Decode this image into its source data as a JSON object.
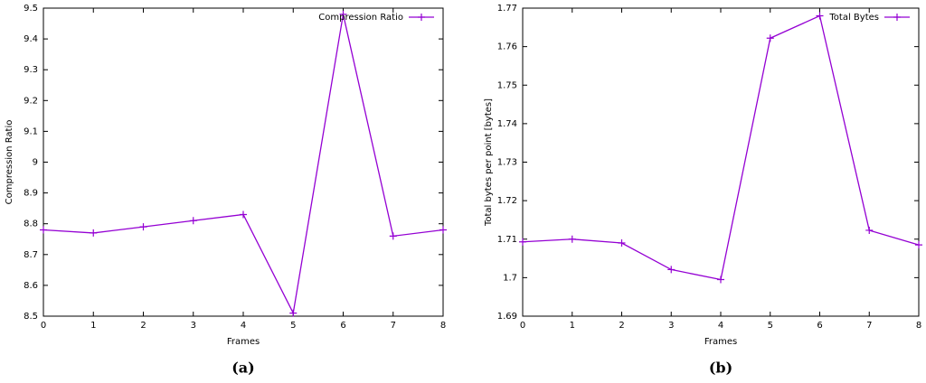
{
  "chart_data": [
    {
      "type": "line",
      "caption": "(a)",
      "x_label": "Frames",
      "y_label": "Compression Ratio",
      "x": [
        0,
        1,
        2,
        3,
        4,
        5,
        6,
        7,
        8
      ],
      "series": [
        {
          "name": "Compression Ratio",
          "color": "#9400d3",
          "values": [
            8.78,
            8.77,
            8.79,
            8.81,
            8.83,
            8.51,
            9.48,
            8.76,
            8.78
          ]
        }
      ],
      "xlim": [
        0,
        8
      ],
      "xticks": [
        0,
        1,
        2,
        3,
        4,
        5,
        6,
        7,
        8
      ],
      "ylim": [
        8.5,
        9.5
      ],
      "yticks": [
        8.5,
        8.6,
        8.7,
        8.8,
        8.9,
        9,
        9.1,
        9.2,
        9.3,
        9.4,
        9.5
      ],
      "legend": "top-right"
    },
    {
      "type": "line",
      "caption": "(b)",
      "x_label": "Frames",
      "y_label": "Total bytes per point [bytes]",
      "x": [
        0,
        1,
        2,
        3,
        4,
        5,
        6,
        7,
        8
      ],
      "series": [
        {
          "name": "Total Bytes",
          "color": "#9400d3",
          "values": [
            1.7093,
            1.71,
            1.709,
            1.7021,
            1.6995,
            1.7622,
            1.768,
            1.7123,
            1.7085
          ]
        }
      ],
      "xlim": [
        0,
        8
      ],
      "xticks": [
        0,
        1,
        2,
        3,
        4,
        5,
        6,
        7,
        8
      ],
      "ylim": [
        1.69,
        1.77
      ],
      "yticks": [
        1.69,
        1.7,
        1.71,
        1.72,
        1.73,
        1.74,
        1.75,
        1.76,
        1.77
      ],
      "legend": "top-right"
    }
  ]
}
